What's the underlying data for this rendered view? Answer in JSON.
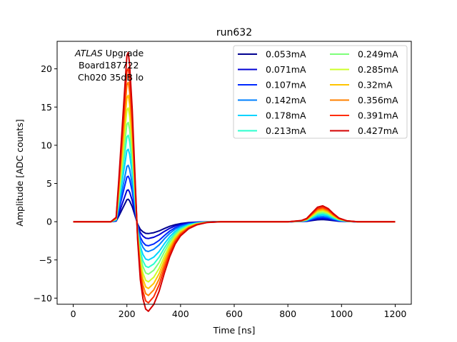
{
  "chart_data": {
    "type": "line",
    "title": "run632",
    "xlabel": "Time [ns]",
    "ylabel": "Amplitude [ADC counts]",
    "xlim": [
      -60,
      1260
    ],
    "ylim": [
      -10.8,
      23.6
    ],
    "xticks": [
      0,
      200,
      400,
      600,
      800,
      1000,
      1200
    ],
    "yticks": [
      -10,
      -5,
      0,
      5,
      10,
      15,
      20
    ],
    "xtick_labels": [
      "0",
      "200",
      "400",
      "600",
      "800",
      "1000",
      "1200"
    ],
    "ytick_labels": [
      "−10",
      "−5",
      "0",
      "5",
      "10",
      "15",
      "20"
    ],
    "grid": false,
    "legend_position": "top-right",
    "legend_columns": 2,
    "annotation": {
      "line1_italic": "ATLAS",
      "line1_rest": " Upgrade",
      "line2": "Board187722",
      "line3": "Ch020 35dB lo"
    },
    "x": [
      0,
      20,
      40,
      60,
      80,
      100,
      120,
      140,
      160,
      170,
      180,
      190,
      200,
      205,
      210,
      220,
      230,
      240,
      250,
      260,
      270,
      280,
      290,
      300,
      320,
      340,
      360,
      380,
      400,
      430,
      460,
      500,
      550,
      600,
      650,
      700,
      750,
      800,
      850,
      870,
      890,
      910,
      930,
      950,
      970,
      990,
      1020,
      1060,
      1100,
      1150,
      1200
    ],
    "series": [
      {
        "name": "0.053mA",
        "color": "#00008f",
        "values": [
          0.0,
          0.0,
          0.0,
          0.0,
          0.0,
          0.0,
          0.0,
          0.0,
          0.08,
          0.73,
          1.46,
          2.16,
          2.88,
          2.94,
          2.73,
          1.95,
          0.81,
          -0.31,
          -1.0,
          -1.33,
          -1.52,
          -1.55,
          -1.5,
          -1.44,
          -1.21,
          -0.89,
          -0.6,
          -0.39,
          -0.25,
          -0.12,
          -0.05,
          -0.01,
          0.0,
          0.0,
          0.0,
          0.0,
          0.0,
          0.0,
          0.02,
          0.05,
          0.15,
          0.25,
          0.28,
          0.23,
          0.14,
          0.06,
          0.02,
          0.0,
          0.0,
          0.0,
          0.0
        ]
      },
      {
        "name": "0.071mA",
        "color": "#0000d4",
        "values": [
          0.0,
          0.0,
          0.0,
          0.0,
          0.0,
          0.0,
          0.0,
          0.0,
          0.11,
          1.04,
          2.07,
          3.07,
          4.09,
          4.17,
          3.88,
          2.77,
          1.15,
          -0.44,
          -1.42,
          -1.89,
          -2.15,
          -2.2,
          -2.12,
          -2.04,
          -1.71,
          -1.26,
          -0.86,
          -0.55,
          -0.35,
          -0.17,
          -0.08,
          -0.02,
          0.0,
          0.0,
          0.0,
          0.0,
          0.0,
          0.0,
          0.03,
          0.08,
          0.22,
          0.36,
          0.39,
          0.33,
          0.2,
          0.09,
          0.02,
          0.0,
          0.0,
          0.0,
          0.0
        ]
      },
      {
        "name": "0.107mA",
        "color": "#0028ff",
        "values": [
          0.0,
          0.0,
          0.0,
          0.0,
          0.0,
          0.0,
          0.0,
          0.0,
          0.15,
          1.48,
          2.96,
          4.38,
          5.84,
          5.95,
          5.54,
          3.95,
          1.64,
          -0.62,
          -2.03,
          -2.7,
          -3.07,
          -3.15,
          -3.03,
          -2.91,
          -2.45,
          -1.8,
          -1.22,
          -0.79,
          -0.5,
          -0.25,
          -0.11,
          -0.02,
          0.0,
          0.0,
          0.0,
          0.0,
          0.0,
          0.0,
          0.04,
          0.11,
          0.31,
          0.51,
          0.56,
          0.47,
          0.28,
          0.13,
          0.03,
          0.0,
          0.0,
          0.0,
          0.0
        ]
      },
      {
        "name": "0.142mA",
        "color": "#0080ff",
        "values": [
          0.0,
          0.0,
          0.0,
          0.0,
          0.0,
          0.0,
          0.0,
          0.0,
          0.19,
          1.84,
          3.66,
          5.43,
          7.24,
          7.38,
          6.87,
          4.9,
          2.03,
          -0.77,
          -2.52,
          -3.35,
          -3.81,
          -3.9,
          -3.76,
          -3.61,
          -3.04,
          -2.23,
          -1.52,
          -0.97,
          -0.62,
          -0.31,
          -0.14,
          -0.03,
          0.0,
          0.0,
          0.0,
          0.0,
          0.0,
          0.0,
          0.05,
          0.14,
          0.39,
          0.63,
          0.69,
          0.58,
          0.35,
          0.16,
          0.04,
          0.0,
          0.0,
          0.0,
          0.0
        ]
      },
      {
        "name": "0.178mA",
        "color": "#00d4ff",
        "values": [
          0.0,
          0.0,
          0.0,
          0.0,
          0.0,
          0.0,
          0.0,
          0.0,
          0.24,
          2.36,
          4.7,
          6.98,
          9.3,
          9.48,
          8.83,
          6.29,
          2.61,
          -0.99,
          -3.24,
          -4.3,
          -4.89,
          -5.01,
          -4.83,
          -4.64,
          -3.9,
          -2.87,
          -1.95,
          -1.25,
          -0.8,
          -0.4,
          -0.18,
          -0.04,
          0.0,
          0.0,
          0.0,
          0.0,
          0.0,
          0.0,
          0.06,
          0.18,
          0.5,
          0.81,
          0.89,
          0.74,
          0.45,
          0.21,
          0.05,
          0.0,
          0.0,
          0.0,
          0.0
        ]
      },
      {
        "name": "0.213mA",
        "color": "#29ffce",
        "values": [
          0.0,
          0.0,
          0.0,
          0.0,
          0.0,
          0.0,
          0.0,
          0.0,
          0.29,
          2.81,
          5.61,
          8.32,
          11.09,
          11.31,
          10.52,
          7.5,
          3.11,
          -1.18,
          -3.86,
          -5.13,
          -5.83,
          -5.98,
          -5.76,
          -5.53,
          -4.65,
          -3.42,
          -2.32,
          -1.49,
          -0.95,
          -0.47,
          -0.21,
          -0.05,
          0.0,
          0.0,
          0.0,
          0.0,
          0.0,
          0.0,
          0.07,
          0.21,
          0.59,
          0.96,
          1.06,
          0.88,
          0.54,
          0.25,
          0.06,
          0.0,
          0.0,
          0.0,
          0.0
        ]
      },
      {
        "name": "0.249mA",
        "color": "#7dff7a",
        "values": [
          0.0,
          0.0,
          0.0,
          0.0,
          0.0,
          0.0,
          0.0,
          0.0,
          0.33,
          3.23,
          6.44,
          9.56,
          12.74,
          12.99,
          12.09,
          8.62,
          3.58,
          -1.36,
          -4.43,
          -5.89,
          -6.7,
          -6.87,
          -6.61,
          -6.35,
          -5.34,
          -3.93,
          -2.67,
          -1.71,
          -1.09,
          -0.54,
          -0.24,
          -0.05,
          0.0,
          0.0,
          0.0,
          0.0,
          0.0,
          0.0,
          0.09,
          0.24,
          0.68,
          1.11,
          1.21,
          1.02,
          0.62,
          0.29,
          0.07,
          0.0,
          0.0,
          0.0,
          0.0
        ]
      },
      {
        "name": "0.285mA",
        "color": "#ceff29",
        "values": [
          0.0,
          0.0,
          0.0,
          0.0,
          0.0,
          0.0,
          0.0,
          0.0,
          0.38,
          3.7,
          7.38,
          10.95,
          14.59,
          14.88,
          13.85,
          9.87,
          4.1,
          -1.55,
          -5.08,
          -6.75,
          -7.67,
          -7.87,
          -7.57,
          -7.28,
          -6.12,
          -4.5,
          -3.05,
          -1.96,
          -1.25,
          -0.62,
          -0.28,
          -0.06,
          0.0,
          0.0,
          0.0,
          0.0,
          0.0,
          0.0,
          0.1,
          0.28,
          0.78,
          1.27,
          1.39,
          1.16,
          0.71,
          0.33,
          0.08,
          0.0,
          0.0,
          0.0,
          0.0
        ]
      },
      {
        "name": "0.32mA",
        "color": "#ffc400",
        "values": [
          0.0,
          0.0,
          0.0,
          0.0,
          0.0,
          0.0,
          0.0,
          0.0,
          0.42,
          4.11,
          8.19,
          12.16,
          16.2,
          16.53,
          15.38,
          10.97,
          4.55,
          -1.73,
          -5.64,
          -7.5,
          -8.52,
          -8.74,
          -8.41,
          -8.08,
          -6.8,
          -5.0,
          -3.39,
          -2.18,
          -1.39,
          -0.69,
          -0.31,
          -0.07,
          0.0,
          0.0,
          0.0,
          0.0,
          0.0,
          0.0,
          0.11,
          0.31,
          0.87,
          1.41,
          1.54,
          1.29,
          0.79,
          0.37,
          0.09,
          0.0,
          0.0,
          0.0,
          0.0
        ]
      },
      {
        "name": "0.356mA",
        "color": "#ff8000",
        "values": [
          0.0,
          0.0,
          0.0,
          0.0,
          0.0,
          0.0,
          0.0,
          0.0,
          0.47,
          4.54,
          9.04,
          13.42,
          17.89,
          18.24,
          16.98,
          12.11,
          5.02,
          -1.91,
          -6.23,
          -8.28,
          -9.41,
          -9.65,
          -9.29,
          -8.93,
          -7.51,
          -5.52,
          -3.75,
          -2.41,
          -1.53,
          -0.77,
          -0.34,
          -0.08,
          0.0,
          0.0,
          0.0,
          0.0,
          0.0,
          0.0,
          0.12,
          0.34,
          0.96,
          1.56,
          1.71,
          1.43,
          0.87,
          0.4,
          0.1,
          0.0,
          0.0,
          0.0,
          0.0
        ]
      },
      {
        "name": "0.391mA",
        "color": "#ff2c00",
        "values": [
          0.0,
          0.0,
          0.0,
          0.0,
          0.0,
          0.0,
          0.0,
          0.0,
          0.52,
          4.99,
          9.95,
          14.77,
          19.68,
          20.07,
          18.69,
          13.32,
          5.53,
          -2.1,
          -6.86,
          -9.11,
          -10.35,
          -10.62,
          -10.22,
          -9.82,
          -8.26,
          -6.07,
          -4.12,
          -2.65,
          -1.69,
          -0.84,
          -0.38,
          -0.09,
          0.0,
          0.0,
          0.0,
          0.0,
          0.0,
          0.0,
          0.13,
          0.38,
          1.05,
          1.71,
          1.88,
          1.57,
          0.96,
          0.44,
          0.11,
          0.0,
          0.0,
          0.0,
          0.0
        ]
      },
      {
        "name": "0.427mA",
        "color": "#d40000",
        "values": [
          0.0,
          0.0,
          0.0,
          0.0,
          0.0,
          0.0,
          0.0,
          0.0,
          0.57,
          5.5,
          10.98,
          16.3,
          21.72,
          22.15,
          20.62,
          14.7,
          6.1,
          -2.32,
          -7.57,
          -10.06,
          -11.42,
          -11.72,
          -11.28,
          -10.84,
          -9.11,
          -6.7,
          -4.55,
          -2.92,
          -1.86,
          -0.93,
          -0.42,
          -0.1,
          0.0,
          0.0,
          0.0,
          0.0,
          0.0,
          0.0,
          0.15,
          0.42,
          1.16,
          1.89,
          2.07,
          1.73,
          1.06,
          0.49,
          0.12,
          0.0,
          0.0,
          0.0,
          0.0
        ]
      }
    ]
  }
}
